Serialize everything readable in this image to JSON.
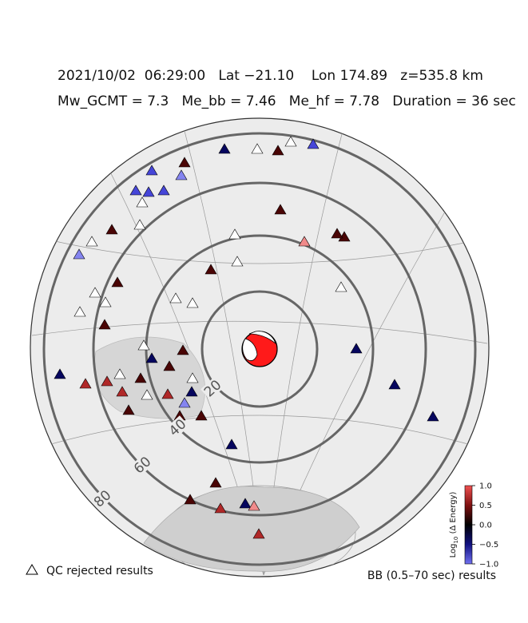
{
  "header": {
    "line1": "2021/10/02  06:29:00   Lat −21.10    Lon 174.89   z=535.8 km",
    "line2": "Mw_GCMT = 7.3   Me_bb = 7.46   Me_hf = 7.78   Duration = 36 sec"
  },
  "ring_labels": [
    20,
    40,
    60,
    80
  ],
  "colorbar": {
    "label_base": "Log",
    "label_sub": "10",
    "label_rest": " (Δ Energy)",
    "ticks": [
      {
        "value": 1,
        "label": "1.0"
      },
      0.5,
      {
        "value": 0,
        "label": "0.0"
      },
      {
        "value": -0.5,
        "label": "−0.5"
      },
      {
        "value": -1,
        "label": "−1.0"
      }
    ],
    "lim": [
      -1,
      1
    ]
  },
  "legend": {
    "qc": "QC rejected results",
    "bb": "BB (0.5–70 sec) results"
  }
}
